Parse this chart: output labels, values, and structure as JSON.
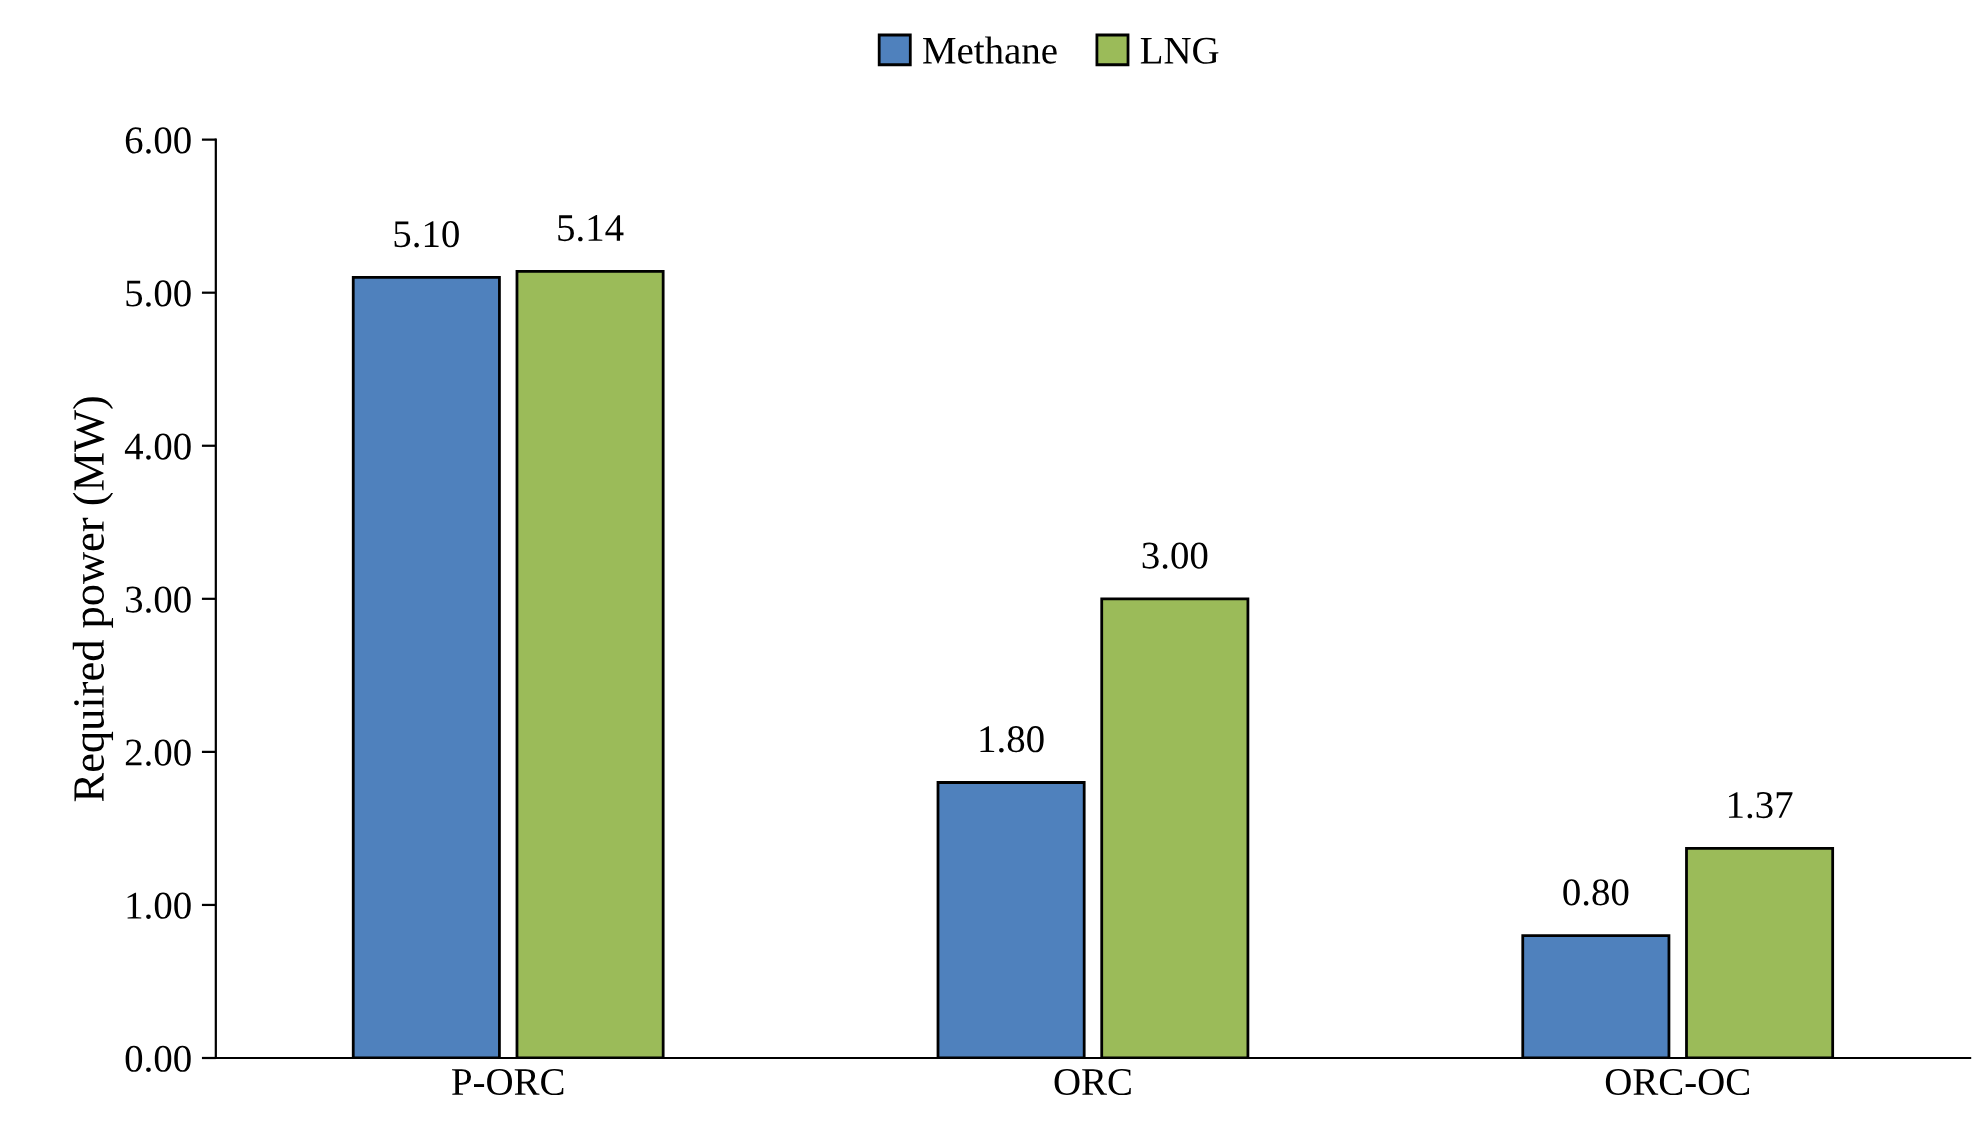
{
  "chart_data": {
    "type": "bar",
    "ylabel": "Required power (MW)",
    "categories": [
      "P-ORC",
      "ORC",
      "ORC-OC"
    ],
    "series": [
      {
        "name": "Methane",
        "color": "#4f81bd",
        "values": [
          5.1,
          1.8,
          0.8
        ],
        "value_labels": [
          "5.10",
          "1.80",
          "0.80"
        ]
      },
      {
        "name": "LNG",
        "color": "#9bbb59",
        "values": [
          5.14,
          3.0,
          1.37
        ],
        "value_labels": [
          "5.14",
          "3.00",
          "1.37"
        ]
      }
    ],
    "ylim": [
      0,
      6
    ],
    "yticks": [
      {
        "value": 0,
        "label": "0.00"
      },
      {
        "value": 1,
        "label": "1.00"
      },
      {
        "value": 2,
        "label": "2.00"
      },
      {
        "value": 3,
        "label": "3.00"
      },
      {
        "value": 4,
        "label": "4.00"
      },
      {
        "value": 5,
        "label": "5.00"
      },
      {
        "value": 6,
        "label": "6.00"
      }
    ],
    "grid": false,
    "legend": "top"
  }
}
